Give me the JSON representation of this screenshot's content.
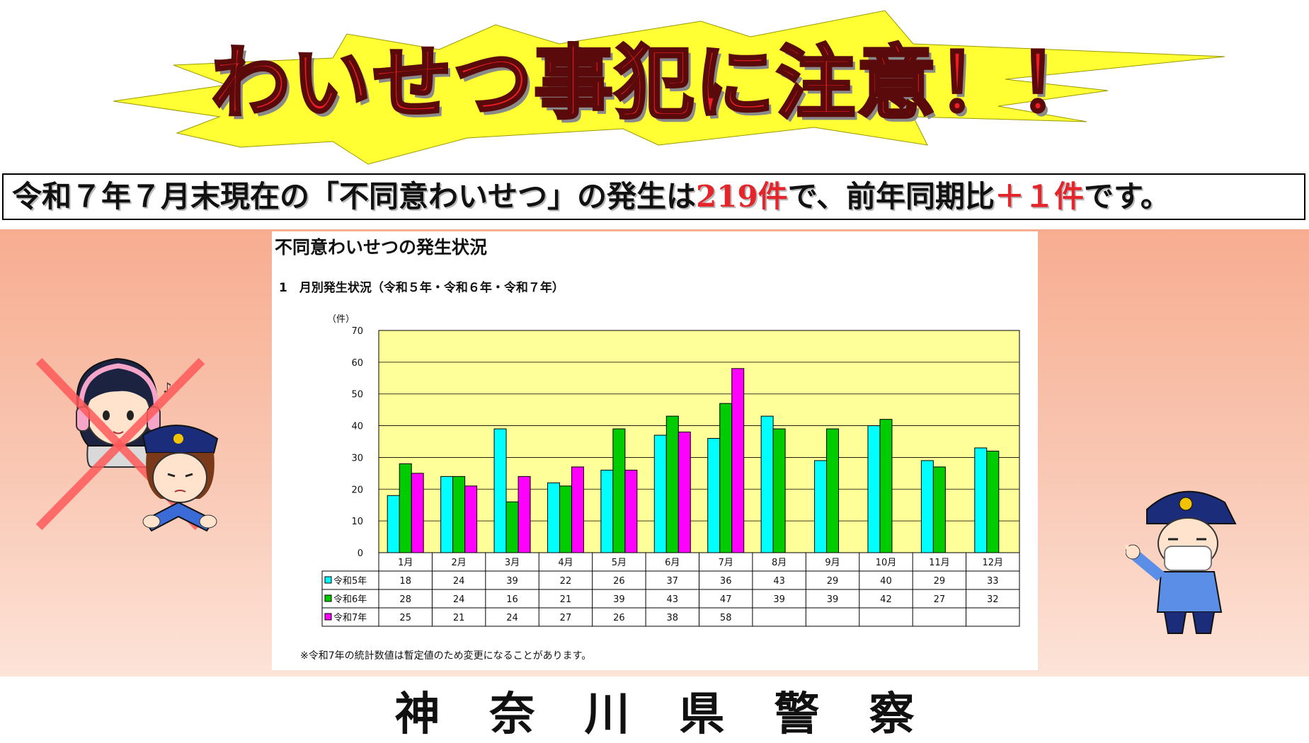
{
  "headline": "わいせつ事犯に注意！！",
  "banner": {
    "prefix": "令和７年７月末現在の「不同意わいせつ」の発生は",
    "count": "219件",
    "middle": "で、前年同期比",
    "diff": "＋１件",
    "suffix": "です。"
  },
  "footer": "神奈川県警察",
  "colors": {
    "headline": "#ee1d23",
    "burst": "#ffff33",
    "band": "#f7ad90",
    "plot_bg": "#ffff99",
    "accent_red": "#e4252b"
  },
  "illustrations": [
    "woman-with-headphones-icon",
    "cross-mark-icon",
    "police-officer-female-icon",
    "police-officer-pointing-icon"
  ],
  "chart_data": {
    "type": "bar",
    "title": "不同意わいせつの発生状況",
    "subtitle": "1　月別発生状況（令和５年・令和６年・令和７年）",
    "ylabel": "（件）",
    "xlabel": "",
    "ylim": [
      0,
      70
    ],
    "yticks": [
      0,
      10,
      20,
      30,
      40,
      50,
      60,
      70
    ],
    "grid": true,
    "categories": [
      "1月",
      "2月",
      "3月",
      "4月",
      "5月",
      "6月",
      "7月",
      "8月",
      "9月",
      "10月",
      "11月",
      "12月"
    ],
    "series": [
      {
        "name": "令和5年",
        "color": "#00ffff",
        "values": [
          18,
          24,
          39,
          22,
          26,
          37,
          36,
          43,
          29,
          40,
          29,
          33
        ]
      },
      {
        "name": "令和6年",
        "color": "#00cc00",
        "values": [
          28,
          24,
          16,
          21,
          39,
          43,
          47,
          39,
          39,
          42,
          27,
          32
        ]
      },
      {
        "name": "令和7年",
        "color": "#ff00ff",
        "values": [
          25,
          21,
          24,
          27,
          26,
          38,
          58,
          null,
          null,
          null,
          null,
          null
        ]
      }
    ],
    "note": "※令和7年の統計数値は暫定値のため変更になることがあります。"
  }
}
